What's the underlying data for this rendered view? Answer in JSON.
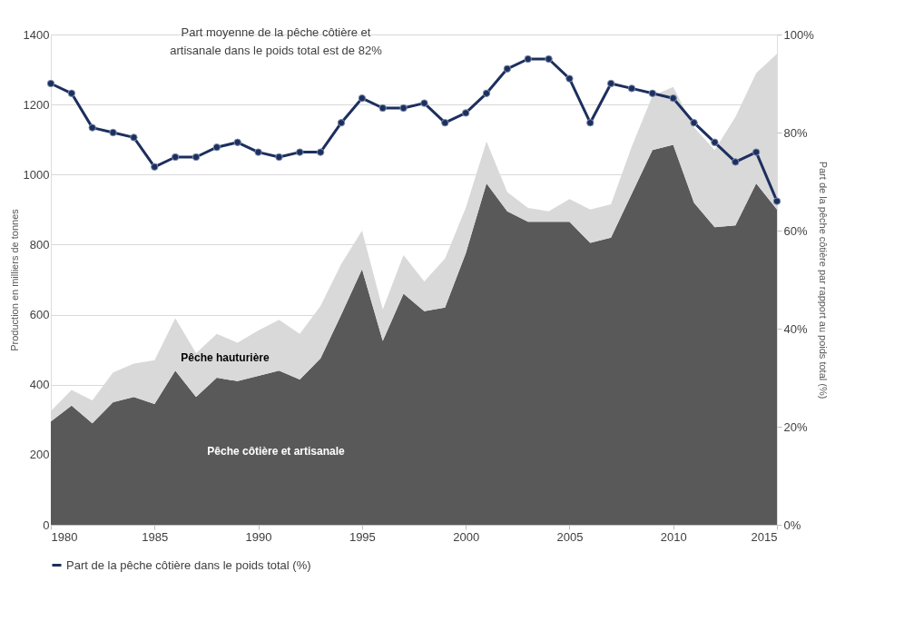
{
  "chart_data": {
    "type": "area",
    "stacked": true,
    "ylabel": "Production en milliers de tonnes",
    "y2label": "Part de la pêche côtière par rapport au poids total (%)",
    "annotations": [
      "Part moyenne de la pêche côtière et\nartisanale dans le poids total est de 82%"
    ],
    "x": [
      1980,
      1981,
      1982,
      1983,
      1984,
      1985,
      1986,
      1987,
      1988,
      1989,
      1990,
      1991,
      1992,
      1993,
      1994,
      1995,
      1996,
      1997,
      1998,
      1999,
      2000,
      2001,
      2002,
      2003,
      2004,
      2005,
      2006,
      2007,
      2008,
      2009,
      2010,
      2011,
      2012,
      2013,
      2014,
      2015
    ],
    "series": [
      {
        "name": "Pêche côtière et artisanale",
        "color": "#595959",
        "values": [
          295,
          340,
          290,
          350,
          365,
          345,
          440,
          365,
          420,
          410,
          425,
          440,
          415,
          475,
          600,
          730,
          525,
          660,
          610,
          620,
          775,
          975,
          895,
          865,
          865,
          865,
          805,
          820,
          945,
          1070,
          1085,
          920,
          850,
          855,
          975,
          900
        ]
      },
      {
        "name": "Pêche hauturière",
        "color": "#d9d9d9",
        "values": [
          30,
          45,
          65,
          85,
          95,
          125,
          150,
          125,
          125,
          110,
          130,
          145,
          130,
          150,
          145,
          110,
          90,
          110,
          85,
          140,
          130,
          120,
          55,
          40,
          30,
          65,
          95,
          95,
          135,
          155,
          165,
          215,
          220,
          310,
          315,
          445
        ]
      },
      {
        "name": "Part de la pêche côtière dans le poids total (%)",
        "type": "line",
        "axis": "y2",
        "marker": "circle",
        "color": "#1c2f5e",
        "values": [
          90,
          88,
          81,
          80,
          79,
          73,
          75,
          75,
          77,
          78,
          76,
          75,
          76,
          76,
          82,
          87,
          85,
          85,
          86,
          82,
          84,
          88,
          93,
          95,
          95,
          91,
          82,
          90,
          89,
          88,
          87,
          82,
          78,
          74,
          76,
          66
        ]
      }
    ],
    "xlim": [
      1980,
      2015
    ],
    "xticks": [
      1980,
      1985,
      1990,
      1995,
      2000,
      2005,
      2010,
      2015
    ],
    "ylim": [
      0,
      1400
    ],
    "yticks": [
      0,
      200,
      400,
      600,
      800,
      1000,
      1200,
      1400
    ],
    "y2lim": [
      0,
      100
    ],
    "y2ticks": [
      {
        "value": 0,
        "label": "0%"
      },
      {
        "value": 20,
        "label": "20%"
      },
      {
        "value": 40,
        "label": "40%"
      },
      {
        "value": 60,
        "label": "60%"
      },
      {
        "value": 80,
        "label": "80%"
      },
      {
        "value": 100,
        "label": "100%"
      }
    ],
    "grid": "y",
    "legend": "bottom",
    "line_style": "solid"
  }
}
